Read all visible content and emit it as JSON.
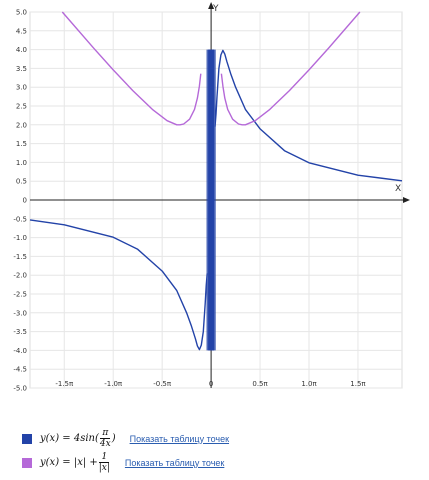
{
  "chart_data": {
    "type": "line",
    "xlabel": "X",
    "ylabel": "Y",
    "xlim": [
      -1.85,
      1.95
    ],
    "ylim": [
      -5.0,
      5.0
    ],
    "x_unit": "π",
    "x_ticks": [
      {
        "value": -1.5,
        "label": "-1.5π"
      },
      {
        "value": -1.0,
        "label": "-1.0π"
      },
      {
        "value": -0.5,
        "label": "-0.5π"
      },
      {
        "value": 0,
        "label": "0"
      },
      {
        "value": 0.5,
        "label": "0.5π"
      },
      {
        "value": 1.0,
        "label": "1.0π"
      },
      {
        "value": 1.5,
        "label": "1.5π"
      }
    ],
    "y_ticks": [
      "5.0",
      "4.5",
      "4.0",
      "3.5",
      "3.0",
      "2.5",
      "2.0",
      "1.5",
      "1.0",
      "0.5",
      "0",
      "-0.5",
      "-1.0",
      "-1.5",
      "-2.0",
      "-2.5",
      "-3.0",
      "-3.5",
      "-4.0",
      "-4.5",
      "-5.0"
    ],
    "grid": true,
    "series": [
      {
        "formula": "y(x) = 4sin(π/(4x))",
        "color": "#2343a8",
        "x": [
          -1.85,
          -1.5,
          -1.0,
          -0.75,
          -0.5,
          -0.35,
          -0.25,
          -0.2,
          -0.16,
          -0.14,
          -0.12,
          -0.1,
          -0.08,
          -0.06,
          -0.05,
          -0.04,
          0.04,
          0.05,
          0.06,
          0.08,
          0.1,
          0.12,
          0.14,
          0.16,
          0.2,
          0.25,
          0.35,
          0.5,
          0.75,
          1.0,
          1.5,
          1.95
        ],
        "y": [
          -0.53,
          -0.66,
          -0.99,
          -1.31,
          -1.89,
          -2.41,
          -3.0,
          -3.36,
          -3.69,
          -3.88,
          -3.98,
          -3.86,
          -3.5,
          -2.75,
          -2.28,
          -1.95,
          1.95,
          2.28,
          2.75,
          3.5,
          3.86,
          3.98,
          3.88,
          3.69,
          3.36,
          3.0,
          2.41,
          1.89,
          1.31,
          0.99,
          0.66,
          0.51
        ]
      },
      {
        "formula": "y(x) = |x| + 1/|x|",
        "color": "#b569d8",
        "x": [
          -1.52,
          -1.2,
          -1.0,
          -0.8,
          -0.6,
          -0.45,
          -0.35,
          -0.318,
          -0.28,
          -0.22,
          -0.17,
          -0.14,
          -0.12,
          -0.105,
          0.105,
          0.12,
          0.14,
          0.17,
          0.22,
          0.28,
          0.318,
          0.35,
          0.45,
          0.6,
          0.8,
          1.0,
          1.2,
          1.52
        ],
        "y": [
          5.0,
          4.04,
          3.46,
          2.91,
          2.41,
          2.11,
          2.0,
          2.0,
          2.02,
          2.15,
          2.41,
          2.71,
          3.03,
          3.36,
          3.36,
          3.03,
          2.71,
          2.41,
          2.15,
          2.02,
          2.0,
          2.0,
          2.11,
          2.41,
          2.91,
          3.46,
          4.04,
          5.0
        ]
      }
    ]
  },
  "legend": [
    {
      "formula_lhs": "y(x) = 4sin(",
      "formula_num": "π",
      "formula_den": "4x",
      "formula_rhs": ")",
      "link": "Показать таблицу точек",
      "color": "#2343a8"
    },
    {
      "formula_lhs": "y(x) = |x| + ",
      "formula_num": "1",
      "formula_den": "|x|",
      "formula_rhs": "",
      "link": "Показать таблицу точек",
      "color": "#b569d8"
    }
  ]
}
